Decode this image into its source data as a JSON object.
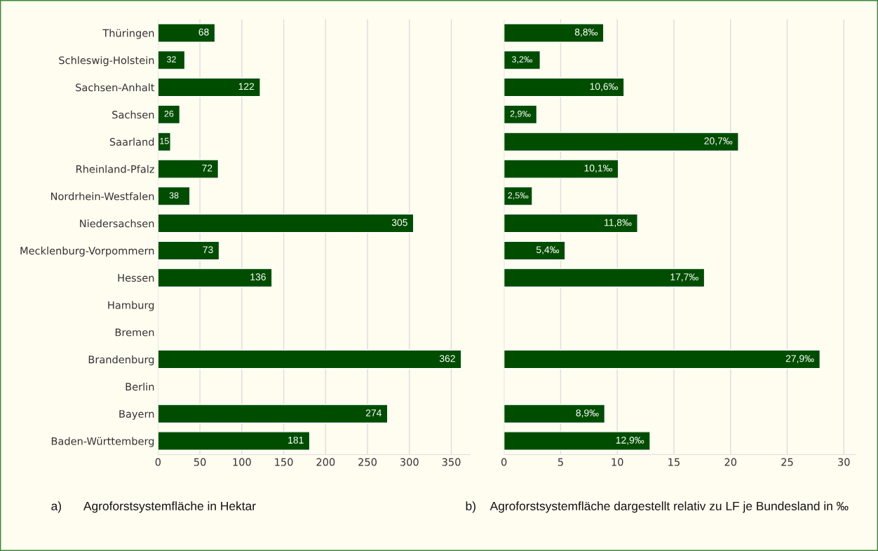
{
  "chart_data": [
    {
      "type": "bar",
      "orientation": "horizontal",
      "categories": [
        "Thüringen",
        "Schleswig-Holstein",
        "Sachsen-Anhalt",
        "Sachsen",
        "Saarland",
        "Rheinland-Pfalz",
        "Nordrhein-Westfalen",
        "Niedersachsen",
        "Mecklenburg-Vorpommern",
        "Hessen",
        "Hamburg",
        "Bremen",
        "Brandenburg",
        "Berlin",
        "Bayern",
        "Baden-Württemberg"
      ],
      "values": [
        68,
        32,
        122,
        26,
        15,
        72,
        38,
        305,
        73,
        136,
        null,
        null,
        362,
        null,
        274,
        181
      ],
      "color": "#004d00",
      "data_labels": true,
      "xlim": [
        0,
        372
      ],
      "xticks": [
        0,
        50,
        100,
        150,
        200,
        250,
        300,
        350
      ],
      "grid": "x",
      "annotations": [
        "a)",
        "Agroforstsystemfläche in Hektar"
      ]
    },
    {
      "type": "bar",
      "orientation": "horizontal",
      "categories": [
        null,
        null,
        null,
        null,
        null,
        null,
        null,
        null,
        null,
        null,
        null,
        null,
        null,
        null,
        null,
        null
      ],
      "values": [
        8.8,
        3.2,
        10.6,
        2.9,
        20.7,
        10.1,
        2.5,
        11.8,
        5.4,
        17.7,
        null,
        null,
        27.9,
        null,
        8.9,
        12.9
      ],
      "value_labels": [
        "8,8‰",
        "3,2‰",
        "10,6‰",
        "2,9‰",
        "20,7‰",
        "10,1‰",
        "2,5‰",
        "11,8‰",
        "5,4‰",
        "17,7‰",
        null,
        null,
        "27,9‰",
        null,
        "8,9‰",
        "12,9‰"
      ],
      "color": "#004d00",
      "xlim": [
        0,
        31
      ],
      "xticks": [
        0,
        5,
        10,
        15,
        20,
        25,
        30
      ],
      "grid": "x",
      "tick_labels": "x",
      "annotations": [
        "b)",
        "Agroforstsystemfläche dargestellt relativ zu LF je Bundesland in ‰"
      ]
    }
  ]
}
